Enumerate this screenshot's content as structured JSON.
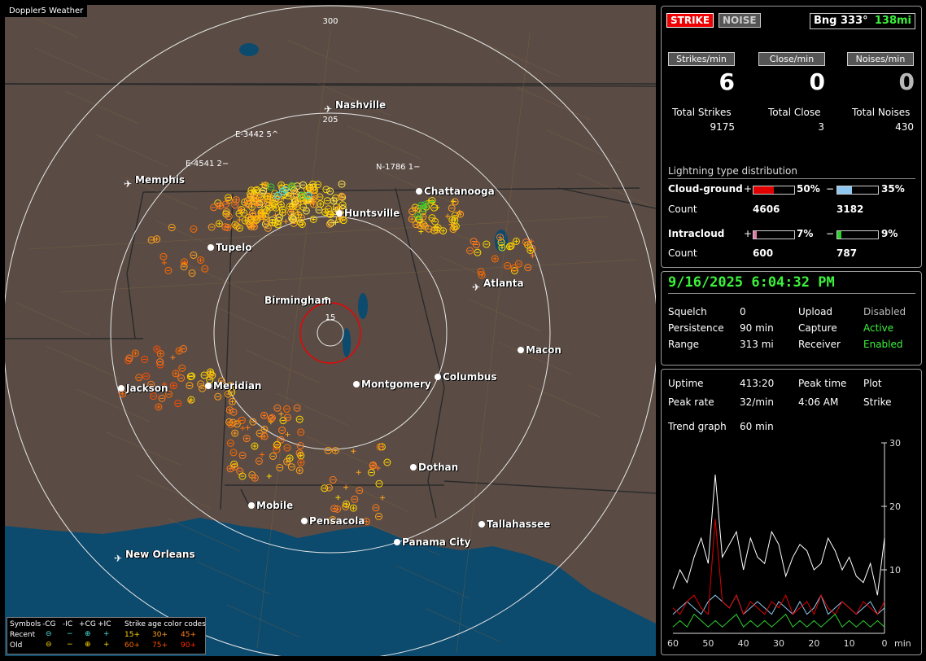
{
  "app": {
    "brand": "Doppler5 Weather"
  },
  "map": {
    "range_labels": [
      "300",
      "205",
      "15"
    ],
    "cities": [
      {
        "name": "Nashville",
        "icon": "airport-icon"
      },
      {
        "name": "Memphis",
        "icon": "airport-icon"
      },
      {
        "name": "Chattanooga",
        "icon": "city-dot"
      },
      {
        "name": "Huntsville",
        "icon": "city-dot"
      },
      {
        "name": "Tupelo",
        "icon": "city-dot"
      },
      {
        "name": "Atlanta",
        "icon": "airport-icon"
      },
      {
        "name": "Birmingham",
        "icon": "city-dot"
      },
      {
        "name": "Macon",
        "icon": "city-dot"
      },
      {
        "name": "Jackson",
        "icon": "city-dot"
      },
      {
        "name": "Meridian",
        "icon": "city-dot"
      },
      {
        "name": "Montgomery",
        "icon": "city-dot"
      },
      {
        "name": "Columbus",
        "icon": "city-dot"
      },
      {
        "name": "Dothan",
        "icon": "city-dot"
      },
      {
        "name": "Mobile",
        "icon": "city-dot"
      },
      {
        "name": "Pensacola",
        "icon": "city-dot"
      },
      {
        "name": "Tallahassee",
        "icon": "city-dot"
      },
      {
        "name": "Panama City",
        "icon": "city-dot"
      },
      {
        "name": "New Orleans",
        "icon": "airport-icon"
      }
    ],
    "storm_tags": [
      "E-3442 5^",
      "E-4541 2−",
      "N-1786 1−"
    ]
  },
  "legend": {
    "symbols_title": "Symbols",
    "cols": [
      "-CG",
      "-IC",
      "+CG",
      "+IC"
    ],
    "recent": "Recent",
    "old": "Old",
    "age_title": "Strike age color codes",
    "recent_ages": [
      "15+",
      "30+",
      "45+"
    ],
    "old_ages": [
      "60+",
      "75+",
      "90+"
    ],
    "age_colors": [
      "#ffd700",
      "#ff9f1a",
      "#ff7a1a",
      "#ff6a00",
      "#ff4d00",
      "#ff2a00"
    ]
  },
  "top": {
    "strike_btn": "STRIKE",
    "noise_btn": "NOISE",
    "bearing": "Bng 333°",
    "distance": "138mi",
    "strikes_min_label": "Strikes/min",
    "close_min_label": "Close/min",
    "noises_min_label": "Noises/min",
    "strikes_min": "6",
    "close_min": "0",
    "noises_min": "0",
    "total_strikes_label": "Total Strikes",
    "total_close_label": "Total Close",
    "total_noises_label": "Total Noises",
    "total_strikes": "9175",
    "total_close": "3",
    "total_noises": "430",
    "dist_title": "Lightning type distribution",
    "cg_label": "Cloud-ground",
    "cg_pos_sign": "+",
    "cg_pos_pct": "50%",
    "cg_pos_frac": 0.5,
    "cg_neg_sign": "−",
    "cg_neg_pct": "35%",
    "cg_neg_frac": 0.35,
    "cg_count_label": "Count",
    "cg_pos_count": "4606",
    "cg_neg_count": "3182",
    "ic_label": "Intracloud",
    "ic_pos_sign": "+",
    "ic_pos_pct": "7%",
    "ic_pos_frac": 0.07,
    "ic_neg_sign": "−",
    "ic_neg_pct": "9%",
    "ic_neg_frac": 0.09,
    "ic_count_label": "Count",
    "ic_pos_count": "600",
    "ic_neg_count": "787",
    "colors": {
      "cg_pos": "#e00000",
      "cg_neg": "#8ec8f0",
      "ic_pos": "#e07aa8",
      "ic_neg": "#2ed02e"
    }
  },
  "mid": {
    "datetime": "9/16/2025 6:04:32 PM",
    "squelch_label": "Squelch",
    "squelch": "0",
    "upload_label": "Upload",
    "upload": "Disabled",
    "persistence_label": "Persistence",
    "persistence": "90 min",
    "capture_label": "Capture",
    "capture": "Active",
    "range_label": "Range",
    "range": "313 mi",
    "receiver_label": "Receiver",
    "receiver": "Enabled"
  },
  "bottom": {
    "uptime_label": "Uptime",
    "uptime": "413:20",
    "peak_time_label": "Peak time",
    "plot_label": "Plot",
    "peak_rate_label": "Peak rate",
    "peak_rate": "32/min",
    "peak_time": "4:06 AM",
    "plot": "Strike",
    "trend_label": "Trend graph",
    "trend": "60 min"
  },
  "chart_data": {
    "type": "line",
    "xlabel": "min",
    "x_ticks": [
      "60",
      "50",
      "40",
      "30",
      "20",
      "10",
      "0"
    ],
    "y_ticks": [
      "30",
      "20",
      "10"
    ],
    "ylim": [
      0,
      30
    ],
    "xlim": [
      60,
      0
    ],
    "x": [
      60,
      58,
      56,
      54,
      52,
      50,
      48,
      46,
      44,
      42,
      40,
      38,
      36,
      34,
      32,
      30,
      28,
      26,
      24,
      22,
      20,
      18,
      16,
      14,
      12,
      10,
      8,
      6,
      4,
      2,
      0
    ],
    "series": [
      {
        "color": "#ffffff",
        "values": [
          7,
          10,
          8,
          12,
          15,
          11,
          25,
          12,
          14,
          16,
          10,
          15,
          12,
          11,
          16,
          14,
          9,
          12,
          14,
          13,
          10,
          11,
          15,
          13,
          10,
          12,
          9,
          8,
          11,
          6,
          15
        ]
      },
      {
        "color": "#8ec8f0",
        "values": [
          3,
          4,
          5,
          4,
          3,
          5,
          6,
          5,
          4,
          6,
          3,
          4,
          5,
          4,
          3,
          5,
          4,
          3,
          5,
          3,
          4,
          6,
          3,
          4,
          5,
          4,
          3,
          4,
          5,
          3,
          4
        ]
      },
      {
        "color": "#e00000",
        "values": [
          4,
          3,
          5,
          6,
          4,
          3,
          18,
          5,
          4,
          6,
          3,
          5,
          4,
          3,
          5,
          4,
          6,
          3,
          4,
          5,
          3,
          6,
          4,
          3,
          5,
          4,
          3,
          5,
          4,
          3,
          5
        ]
      },
      {
        "color": "#2ed02e",
        "values": [
          1,
          2,
          1,
          3,
          2,
          1,
          2,
          1,
          2,
          3,
          1,
          2,
          1,
          2,
          1,
          2,
          3,
          1,
          2,
          1,
          2,
          1,
          2,
          3,
          1,
          2,
          1,
          2,
          1,
          2,
          1
        ]
      }
    ]
  }
}
